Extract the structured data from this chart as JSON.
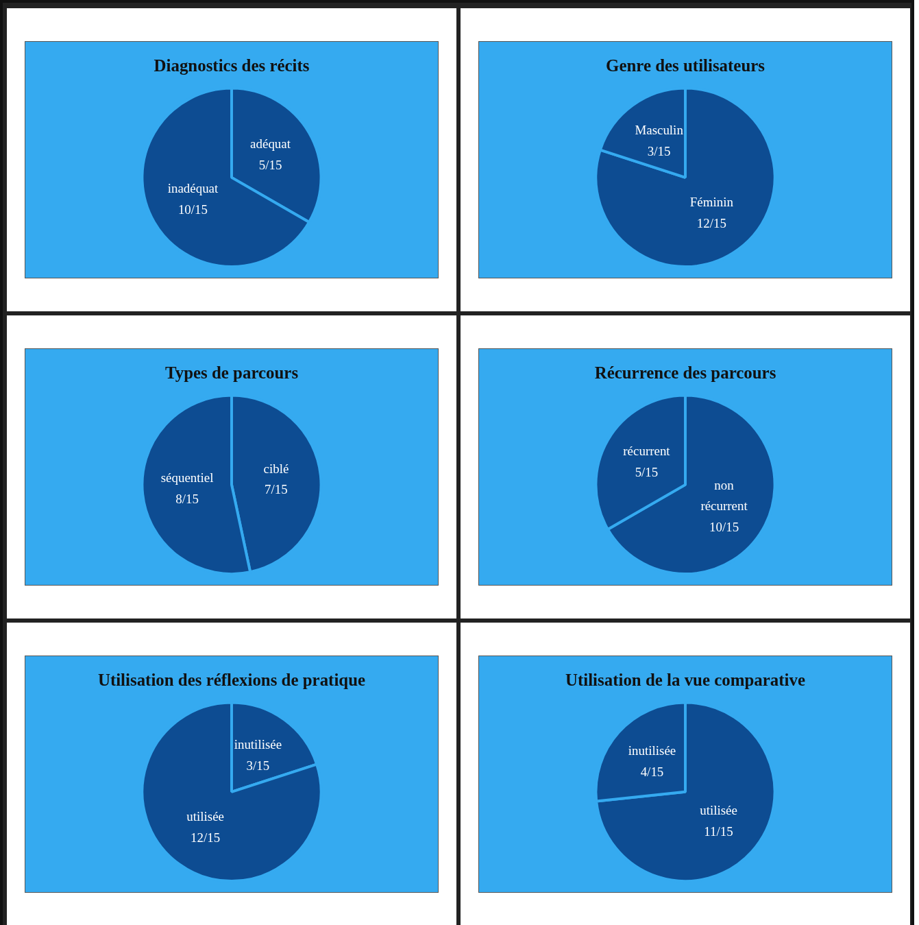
{
  "chart_data": [
    {
      "type": "pie",
      "title": "Diagnostics des récits",
      "categories": [
        "adéquat",
        "inadéquat"
      ],
      "values": [
        5,
        10
      ],
      "value_labels": [
        "5/15",
        "10/15"
      ],
      "colors": [
        "#0d4c92",
        "#0d4c92"
      ]
    },
    {
      "type": "pie",
      "title": "Genre des utilisateurs",
      "categories": [
        "Féminin",
        "Masculin"
      ],
      "values": [
        12,
        3
      ],
      "value_labels": [
        "12/15",
        "3/15"
      ],
      "colors": [
        "#0d4c92",
        "#0d4c92"
      ]
    },
    {
      "type": "pie",
      "title": "Types de parcours",
      "categories": [
        "ciblé",
        "séquentiel"
      ],
      "values": [
        7,
        8
      ],
      "value_labels": [
        "7/15",
        "8/15"
      ],
      "colors": [
        "#0d4c92",
        "#0d4c92"
      ]
    },
    {
      "type": "pie",
      "title": "Récurrence des parcours",
      "categories": [
        "non récurrent",
        "récurrent"
      ],
      "values": [
        10,
        5
      ],
      "value_labels": [
        "10/15",
        "5/15"
      ],
      "colors": [
        "#0d4c92",
        "#0d4c92"
      ]
    },
    {
      "type": "pie",
      "title": "Utilisation des réflexions de pratique",
      "categories": [
        "inutilisée",
        "utilisée"
      ],
      "values": [
        3,
        12
      ],
      "value_labels": [
        "3/15",
        "12/15"
      ],
      "colors": [
        "#0d4c92",
        "#0d4c92"
      ]
    },
    {
      "type": "pie",
      "title": "Utilisation de la vue comparative",
      "categories": [
        "utilisée",
        "inutilisée"
      ],
      "values": [
        11,
        4
      ],
      "value_labels": [
        "11/15",
        "4/15"
      ],
      "colors": [
        "#0d4c92",
        "#0d4c92"
      ]
    }
  ]
}
